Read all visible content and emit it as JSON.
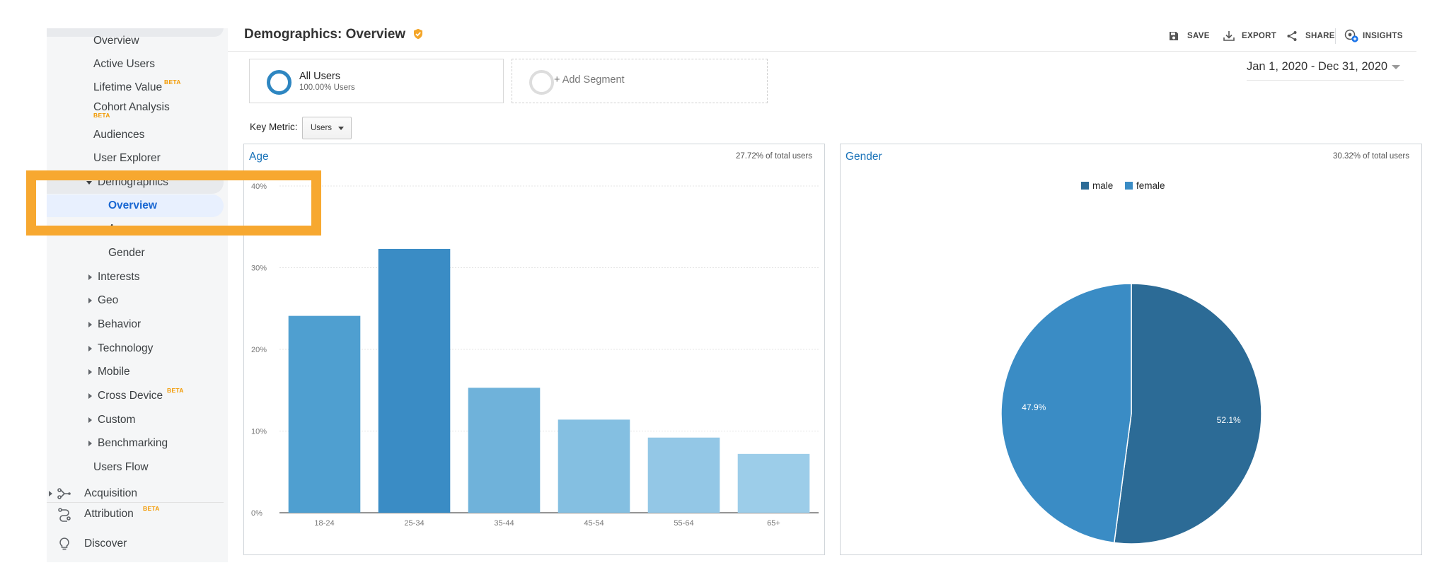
{
  "sidebar": {
    "items": {
      "overview": "Overview",
      "active_users": "Active Users",
      "lifetime_value": "Lifetime Value",
      "lifetime_value_badge": "BETA",
      "cohort_analysis": "Cohort Analysis",
      "cohort_analysis_badge": "BETA",
      "audiences": "Audiences",
      "user_explorer": "User Explorer",
      "demographics": "Demographics",
      "demographics_overview": "Overview",
      "age": "Age",
      "gender": "Gender",
      "interests": "Interests",
      "geo": "Geo",
      "behavior": "Behavior",
      "technology": "Technology",
      "mobile": "Mobile",
      "cross_device": "Cross Device",
      "cross_device_badge": "BETA",
      "custom": "Custom",
      "benchmarking": "Benchmarking",
      "users_flow": "Users Flow",
      "acquisition": "Acquisition",
      "attribution": "Attribution",
      "attribution_badge": "BETA",
      "discover": "Discover"
    }
  },
  "header": {
    "title": "Demographics: Overview",
    "actions": {
      "save": "SAVE",
      "export": "EXPORT",
      "share": "SHARE",
      "insights": "INSIGHTS"
    }
  },
  "segments": {
    "all_users_name": "All Users",
    "all_users_sub": "100.00% Users",
    "add_segment": "+ Add Segment"
  },
  "date_range": "Jan 1, 2020 - Dec 31, 2020",
  "key_metric": {
    "label": "Key Metric:",
    "value": "Users"
  },
  "colors": {
    "accent": "#1a73b9",
    "highlight": "#f7a830",
    "beta": "#f29900",
    "male": "#2c6b96",
    "female": "#3a8cc5"
  },
  "panels": {
    "age": {
      "title": "Age",
      "total": "27.72% of total users"
    },
    "gender": {
      "title": "Gender",
      "total": "30.32% of total users"
    }
  },
  "chart_data": [
    {
      "type": "bar",
      "title": "Age",
      "categories": [
        "18-24",
        "25-34",
        "35-44",
        "45-54",
        "55-64",
        "65+"
      ],
      "values": [
        24.1,
        32.3,
        15.3,
        11.4,
        9.2,
        7.2
      ],
      "bar_colors": [
        "#4f9fd0",
        "#3a8cc5",
        "#6fb2da",
        "#84bfe1",
        "#93c7e6",
        "#9ccde9"
      ],
      "ylim": [
        0,
        40
      ],
      "yticks": [
        "0%",
        "10%",
        "20%",
        "30%",
        "40%"
      ],
      "grid": true
    },
    {
      "type": "pie",
      "title": "Gender",
      "categories": [
        "male",
        "female"
      ],
      "values": [
        52.1,
        47.9
      ],
      "labels": [
        "52.1%",
        "47.9%"
      ],
      "legend": "top-center"
    }
  ]
}
